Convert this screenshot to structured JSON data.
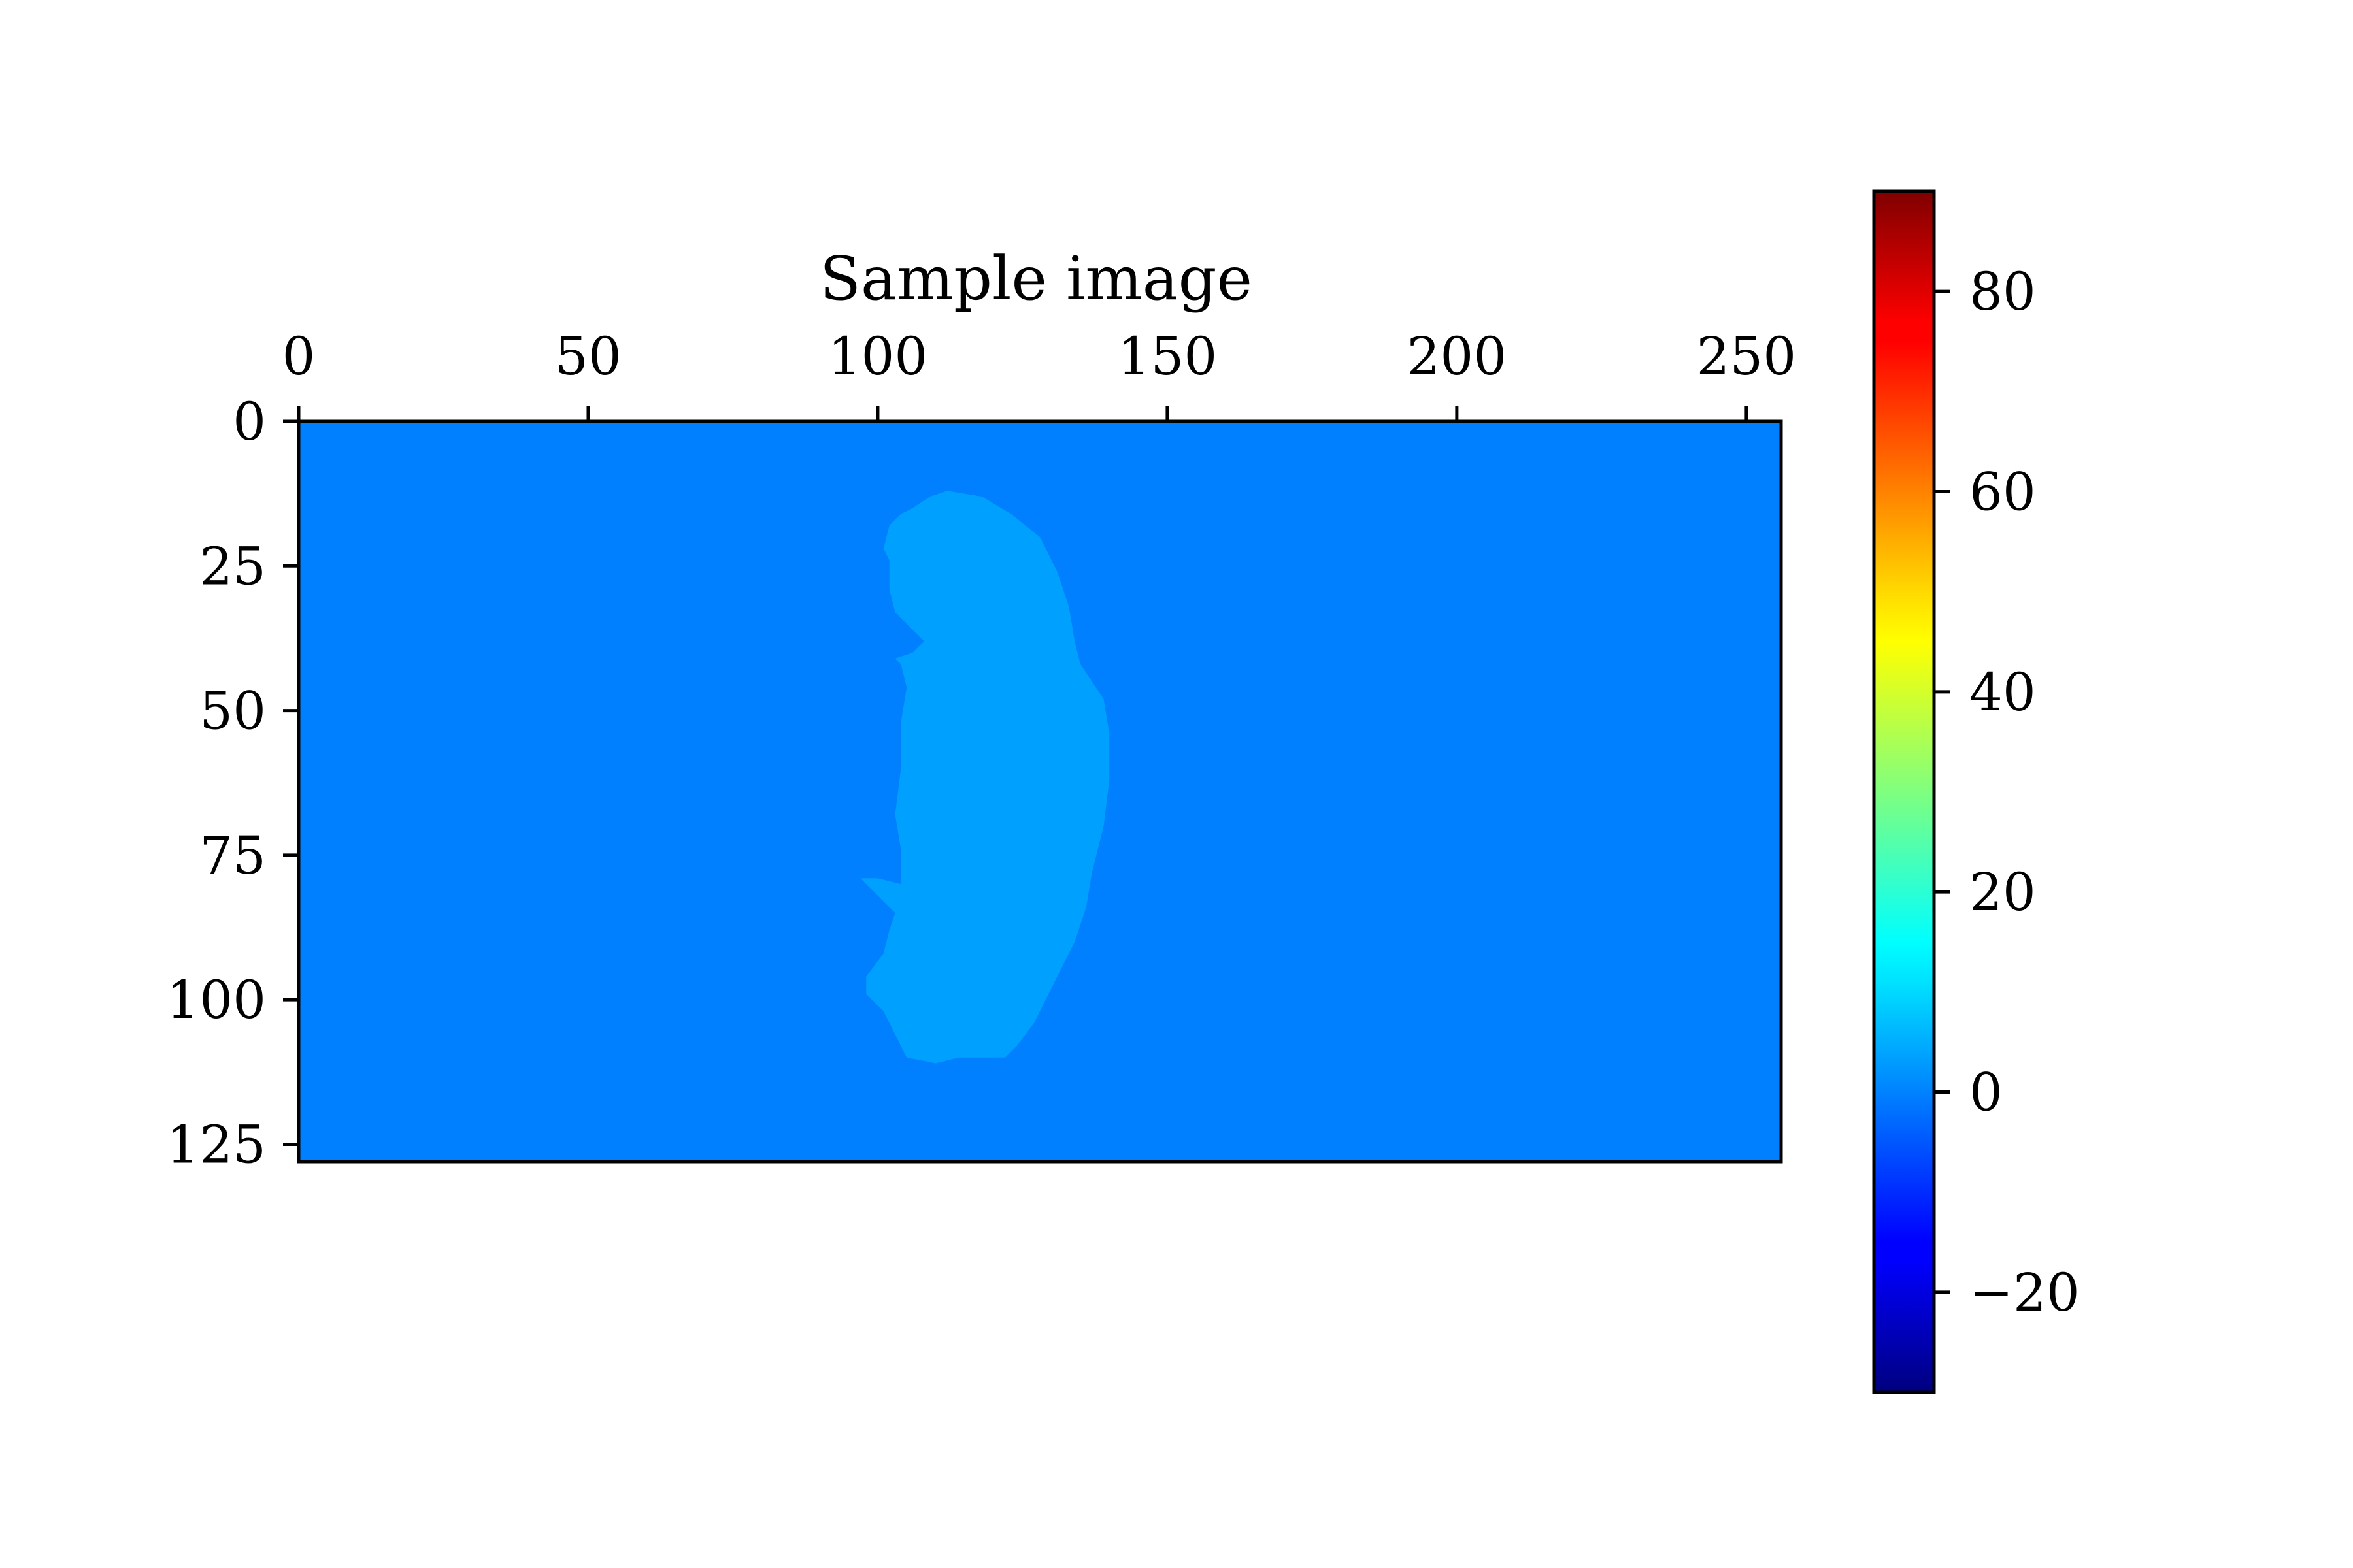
{
  "chart_data": {
    "type": "heatmap",
    "title": "Sample image",
    "xlabel": "",
    "ylabel": "",
    "image_shape": [
      128,
      256
    ],
    "x_ticks": [
      0,
      50,
      100,
      150,
      200,
      250
    ],
    "x_tick_labels": [
      "0",
      "50",
      "100",
      "150",
      "200",
      "250"
    ],
    "y_ticks": [
      0,
      25,
      50,
      75,
      100,
      125
    ],
    "y_tick_labels": [
      "0",
      "25",
      "50",
      "75",
      "100",
      "125"
    ],
    "x_axis_position": "top",
    "xlim": [
      0,
      256
    ],
    "ylim": [
      128,
      0
    ],
    "grid": false,
    "colormap": "jet",
    "color_range": [
      -30,
      90
    ],
    "colorbar_ticks": [
      -20,
      0,
      20,
      40,
      60,
      80
    ],
    "colorbar_tick_labels": [
      "−20",
      "0",
      "20",
      "40",
      "60",
      "80"
    ],
    "background_value": 0,
    "region_value": 3,
    "region_outline": [
      [
        112,
        12
      ],
      [
        118,
        13
      ],
      [
        123,
        16
      ],
      [
        128,
        20
      ],
      [
        131,
        26
      ],
      [
        133,
        32
      ],
      [
        134,
        38
      ],
      [
        135,
        42
      ],
      [
        139,
        48
      ],
      [
        140,
        54
      ],
      [
        140,
        62
      ],
      [
        139,
        70
      ],
      [
        137,
        78
      ],
      [
        136,
        84
      ],
      [
        134,
        90
      ],
      [
        132,
        94
      ],
      [
        130,
        98
      ],
      [
        127,
        104
      ],
      [
        124,
        108
      ],
      [
        122,
        110
      ],
      [
        114,
        110
      ],
      [
        110,
        111
      ],
      [
        105,
        110
      ],
      [
        103,
        106
      ],
      [
        101,
        102
      ],
      [
        98,
        99
      ],
      [
        98,
        96
      ],
      [
        101,
        92
      ],
      [
        102,
        88
      ],
      [
        103,
        85
      ],
      [
        100,
        82
      ],
      [
        97,
        79
      ],
      [
        100,
        79
      ],
      [
        104,
        80
      ],
      [
        104,
        74
      ],
      [
        103,
        68
      ],
      [
        104,
        60
      ],
      [
        104,
        52
      ],
      [
        105,
        46
      ],
      [
        104,
        42
      ],
      [
        103,
        41
      ],
      [
        106,
        40
      ],
      [
        108,
        38
      ],
      [
        106,
        36
      ],
      [
        103,
        33
      ],
      [
        102,
        29
      ],
      [
        102,
        24
      ],
      [
        101,
        22
      ],
      [
        102,
        18
      ],
      [
        104,
        16
      ],
      [
        106,
        15
      ],
      [
        109,
        13
      ]
    ]
  },
  "colors": {
    "background": "#007fff",
    "region": "#00a0ff"
  }
}
